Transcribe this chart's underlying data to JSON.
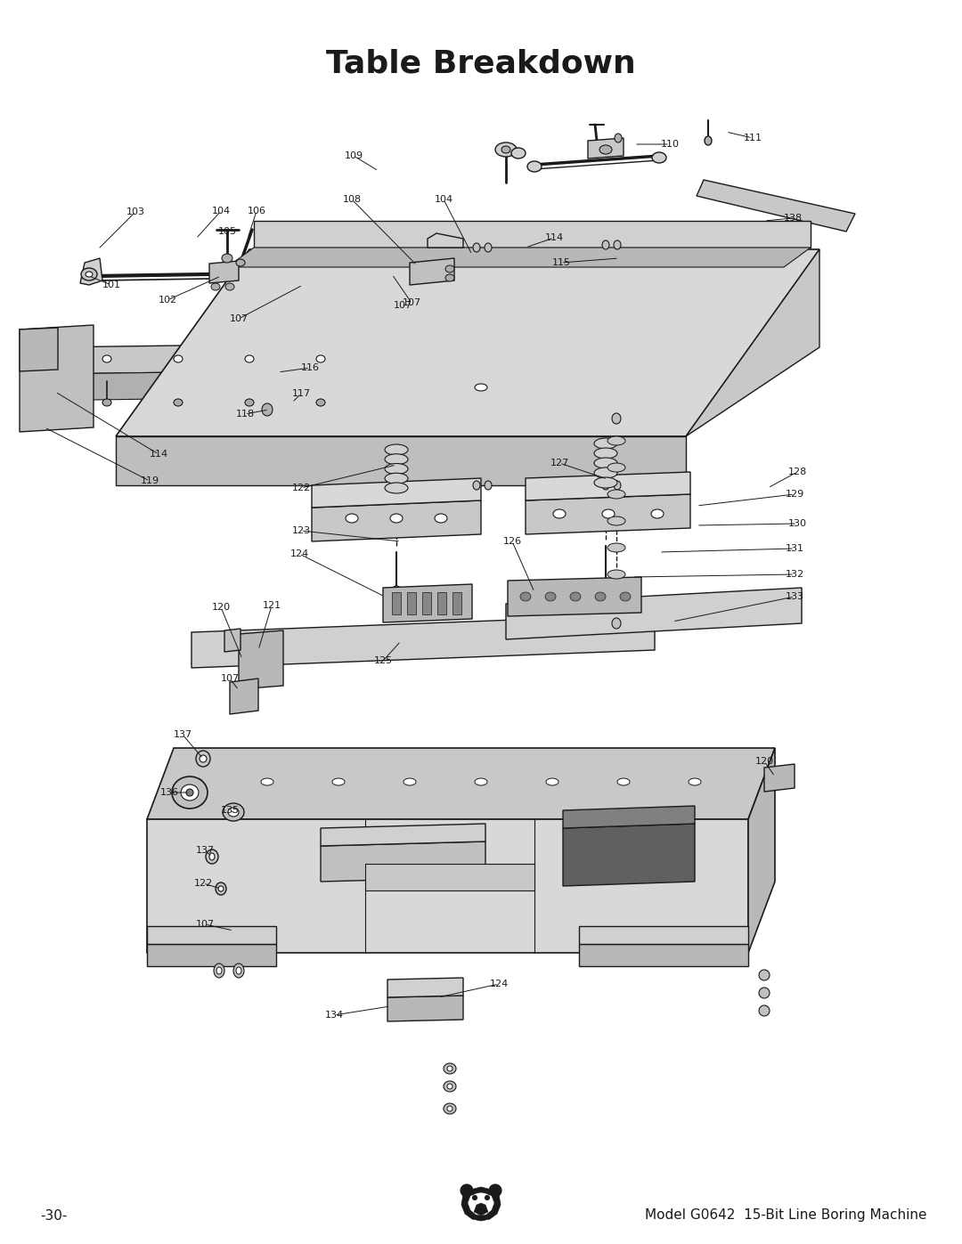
{
  "title": "Table Breakdown",
  "title_fontsize": 26,
  "title_fontweight": "bold",
  "background_color": "#ffffff",
  "footer_left": "-30-",
  "footer_right": "Model G0642  15-Bit Line Boring Machine",
  "footer_fontsize": 11,
  "line_color": "#1a1a1a",
  "text_color": "#1a1a1a",
  "label_fontsize": 8.0
}
